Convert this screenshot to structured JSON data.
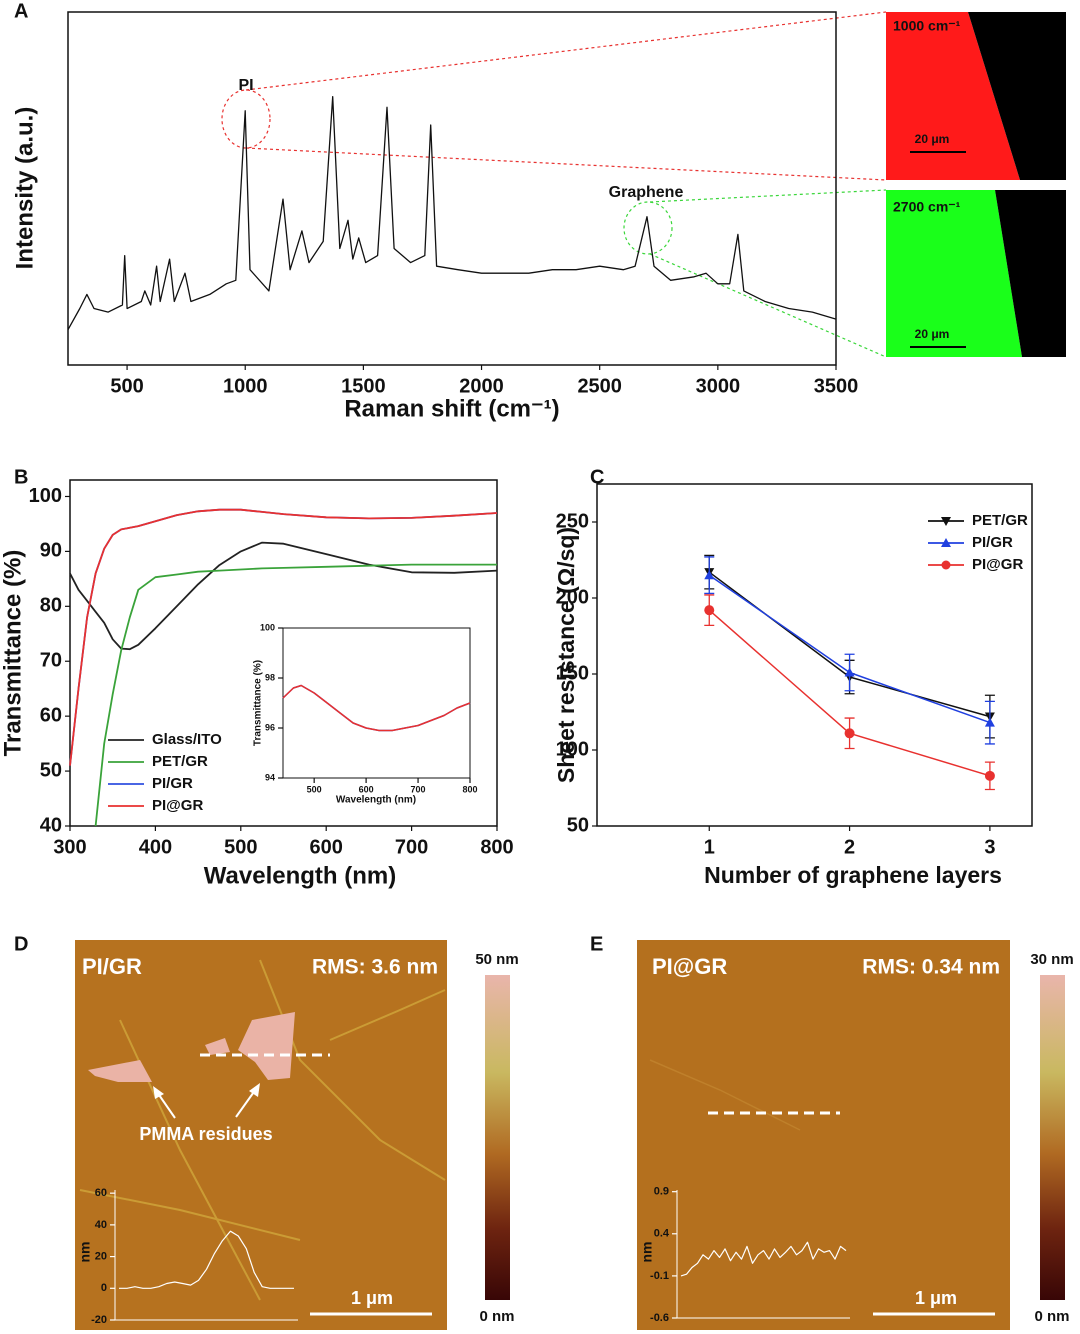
{
  "panels": [
    "A",
    "B",
    "C",
    "D",
    "E"
  ],
  "raman_maps": [
    {
      "label": "1000 cm⁻¹",
      "scale_bar": "20 μm"
    },
    {
      "label": "2700 cm⁻¹",
      "scale_bar": "20 μm"
    }
  ],
  "afm": [
    {
      "sample": "PI/GR",
      "rms": "RMS: 3.6 nm",
      "note": "PMMA residues",
      "scale_bar": "1 μm",
      "colorbar_max": "50 nm",
      "colorbar_min": "0 nm"
    },
    {
      "sample": "PI@GR",
      "rms": "RMS: 0.34 nm",
      "scale_bar": "1 μm",
      "colorbar_max": "30 nm",
      "colorbar_min": "0 nm"
    }
  ],
  "chart_data": [
    {
      "type": "line",
      "x_label": "Raman shift (cm⁻¹)",
      "y_label": "Intensity (a.u.)",
      "annotations": [
        "PI",
        "Graphene"
      ],
      "x": [
        250,
        300,
        330,
        360,
        420,
        480,
        490,
        500,
        560,
        575,
        600,
        625,
        640,
        680,
        700,
        745,
        770,
        850,
        920,
        960,
        1000,
        1020,
        1100,
        1160,
        1190,
        1240,
        1270,
        1330,
        1370,
        1400,
        1435,
        1455,
        1480,
        1510,
        1560,
        1600,
        1630,
        1700,
        1760,
        1785,
        1810,
        1900,
        2000,
        2100,
        2200,
        2300,
        2400,
        2500,
        2600,
        2650,
        2700,
        2730,
        2800,
        2900,
        2950,
        3000,
        3050,
        3085,
        3110,
        3200,
        3300,
        3400,
        3500
      ],
      "values": [
        10,
        16,
        20,
        16,
        15,
        17,
        31,
        16,
        18,
        21,
        17,
        28,
        18,
        30,
        18,
        26,
        18,
        20,
        23,
        24,
        72,
        27,
        21,
        47,
        27,
        38,
        29,
        35,
        76,
        33,
        41,
        30,
        36,
        29,
        31,
        73,
        33,
        29,
        31,
        68,
        28,
        27,
        26,
        26,
        26,
        27,
        27,
        28,
        27,
        28,
        42,
        28,
        24,
        25,
        26,
        23,
        23,
        37,
        21,
        18,
        16,
        15,
        13
      ],
      "color": "#111111",
      "xlim": [
        250,
        3500
      ],
      "ylim": [
        0,
        100
      ],
      "xticks": [
        500,
        1000,
        1500,
        2000,
        2500,
        3000,
        3500
      ]
    },
    {
      "type": "line",
      "x_label": "Wavelength (nm)",
      "y_label": "Transmittance (%)",
      "legend": "bottom-left",
      "x": [
        300,
        310,
        320,
        330,
        340,
        350,
        360,
        370,
        380,
        400,
        425,
        450,
        475,
        500,
        525,
        550,
        600,
        650,
        700,
        750,
        800
      ],
      "series": [
        {
          "name": "Glass/ITO",
          "color": "#222222",
          "values": [
            86,
            83,
            81,
            79,
            77,
            74,
            72.3,
            72.2,
            73,
            76,
            80,
            84,
            87.5,
            90,
            91.6,
            91.4,
            89.5,
            87.6,
            86.2,
            86.1,
            86.5
          ]
        },
        {
          "name": "PET/GR",
          "color": "#3aa33a",
          "values": [
            null,
            null,
            null,
            40,
            55,
            64,
            72,
            78,
            83,
            85.3,
            85.8,
            86.3,
            86.5,
            86.7,
            86.9,
            87,
            87.2,
            87.4,
            87.6,
            87.6,
            87.6
          ]
        },
        {
          "name": "PI/GR",
          "color": "#3050e0",
          "values": [
            51,
            65,
            78,
            86,
            90.5,
            93,
            94,
            94.3,
            94.6,
            95.5,
            96.6,
            97.3,
            97.6,
            97.6,
            97.2,
            96.8,
            96.2,
            96,
            96.1,
            96.5,
            97
          ]
        },
        {
          "name": "PI@GR",
          "color": "#e8312f",
          "values": [
            51,
            65,
            78,
            86,
            90.5,
            93,
            94,
            94.3,
            94.6,
            95.5,
            96.6,
            97.3,
            97.6,
            97.6,
            97.2,
            96.8,
            96.2,
            96,
            96.1,
            96.5,
            97
          ]
        }
      ],
      "xlim": [
        300,
        800
      ],
      "ylim": [
        40,
        103
      ],
      "xticks": [
        300,
        400,
        500,
        600,
        700,
        800
      ],
      "yticks": [
        40,
        50,
        60,
        70,
        80,
        90,
        100
      ]
    },
    {
      "type": "line",
      "x_label": "Wavelength (nm)",
      "y_label": "Transmittance (%)",
      "x": [
        440,
        460,
        475,
        500,
        525,
        550,
        575,
        600,
        625,
        650,
        675,
        700,
        725,
        750,
        775,
        800
      ],
      "series": [
        {
          "color": "#3050e0",
          "values": [
            97.2,
            97.6,
            97.7,
            97.4,
            97,
            96.6,
            96.2,
            96,
            95.9,
            95.9,
            96,
            96.1,
            96.3,
            96.5,
            96.8,
            97
          ]
        },
        {
          "color": "#e8312f",
          "values": [
            97.2,
            97.6,
            97.7,
            97.4,
            97,
            96.6,
            96.2,
            96,
            95.9,
            95.9,
            96,
            96.1,
            96.3,
            96.5,
            96.8,
            97
          ]
        }
      ],
      "xlim": [
        440,
        800
      ],
      "ylim": [
        94,
        100
      ],
      "xticks": [
        500,
        600,
        700,
        800
      ],
      "yticks": [
        94,
        96,
        98,
        100
      ]
    },
    {
      "type": "line",
      "x_label": "Number of graphene layers",
      "y_label": "Sheet resistance (Ω/sq)",
      "legend": "top-right",
      "x": [
        1,
        2,
        3
      ],
      "series": [
        {
          "name": "PET/GR",
          "color": "#111111",
          "marker": "triangle-down",
          "values": [
            217,
            148,
            122
          ],
          "errors": [
            11,
            11,
            14
          ]
        },
        {
          "name": "PI/GR",
          "color": "#2040e0",
          "marker": "triangle-up",
          "values": [
            215,
            151,
            118
          ],
          "errors": [
            12,
            12,
            14
          ]
        },
        {
          "name": "PI@GR",
          "color": "#e8312f",
          "marker": "circle",
          "values": [
            192,
            111,
            83
          ],
          "errors": [
            10,
            10,
            9
          ]
        }
      ],
      "xlim": [
        0.2,
        3.3
      ],
      "ylim": [
        50,
        275
      ],
      "xticks": [
        1,
        2,
        3
      ],
      "yticks": [
        50,
        100,
        150,
        200,
        250
      ]
    },
    {
      "type": "line",
      "y_label": "nm",
      "color": "#ffffff",
      "values": [
        0,
        0,
        1,
        0,
        0,
        1,
        3,
        4,
        3,
        2,
        5,
        12,
        22,
        30,
        36,
        33,
        25,
        10,
        1,
        0,
        0,
        0,
        0
      ],
      "ylim": [
        -20,
        62
      ],
      "yticks": [
        -20,
        0,
        20,
        40,
        60
      ]
    },
    {
      "type": "line",
      "y_label": "nm",
      "color": "#ffffff",
      "values": [
        -0.1,
        -0.08,
        0,
        0.05,
        0.15,
        0.1,
        0.2,
        0.12,
        0.22,
        0.08,
        0.18,
        0.1,
        0.25,
        0.05,
        0.15,
        0.2,
        0.1,
        0.22,
        0.12,
        0.18,
        0.25,
        0.15,
        0.2,
        0.3,
        0.1,
        0.22,
        0.18,
        0.2,
        0.1,
        0.25,
        0.2
      ],
      "ylim": [
        -0.6,
        0.92
      ],
      "yticks": [
        -0.6,
        -0.1,
        0.4,
        0.9
      ]
    }
  ]
}
